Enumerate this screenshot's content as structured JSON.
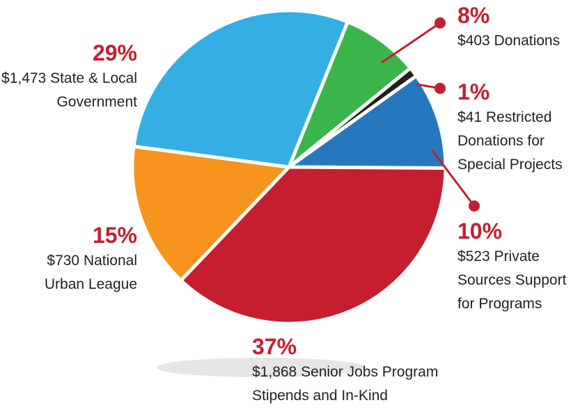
{
  "chart_data": {
    "type": "pie",
    "categories": [
      "$403 Donations",
      "$41 Restricted Donations for Special Projects",
      "$523 Private Sources Support for Programs",
      "$1,868 Senior Jobs Program Stipends and In-Kind",
      "$730 National Urban League",
      "$1,473 State & Local Government"
    ],
    "values": [
      8,
      1,
      10,
      37,
      15,
      29
    ],
    "value_labels": [
      "8%",
      "1%",
      "10%",
      "37%",
      "15%",
      "29%"
    ],
    "colors": [
      "#3ab54a",
      "#231f20",
      "#2678be",
      "#c41e2f",
      "#f7941d",
      "#35aee3"
    ]
  }
}
